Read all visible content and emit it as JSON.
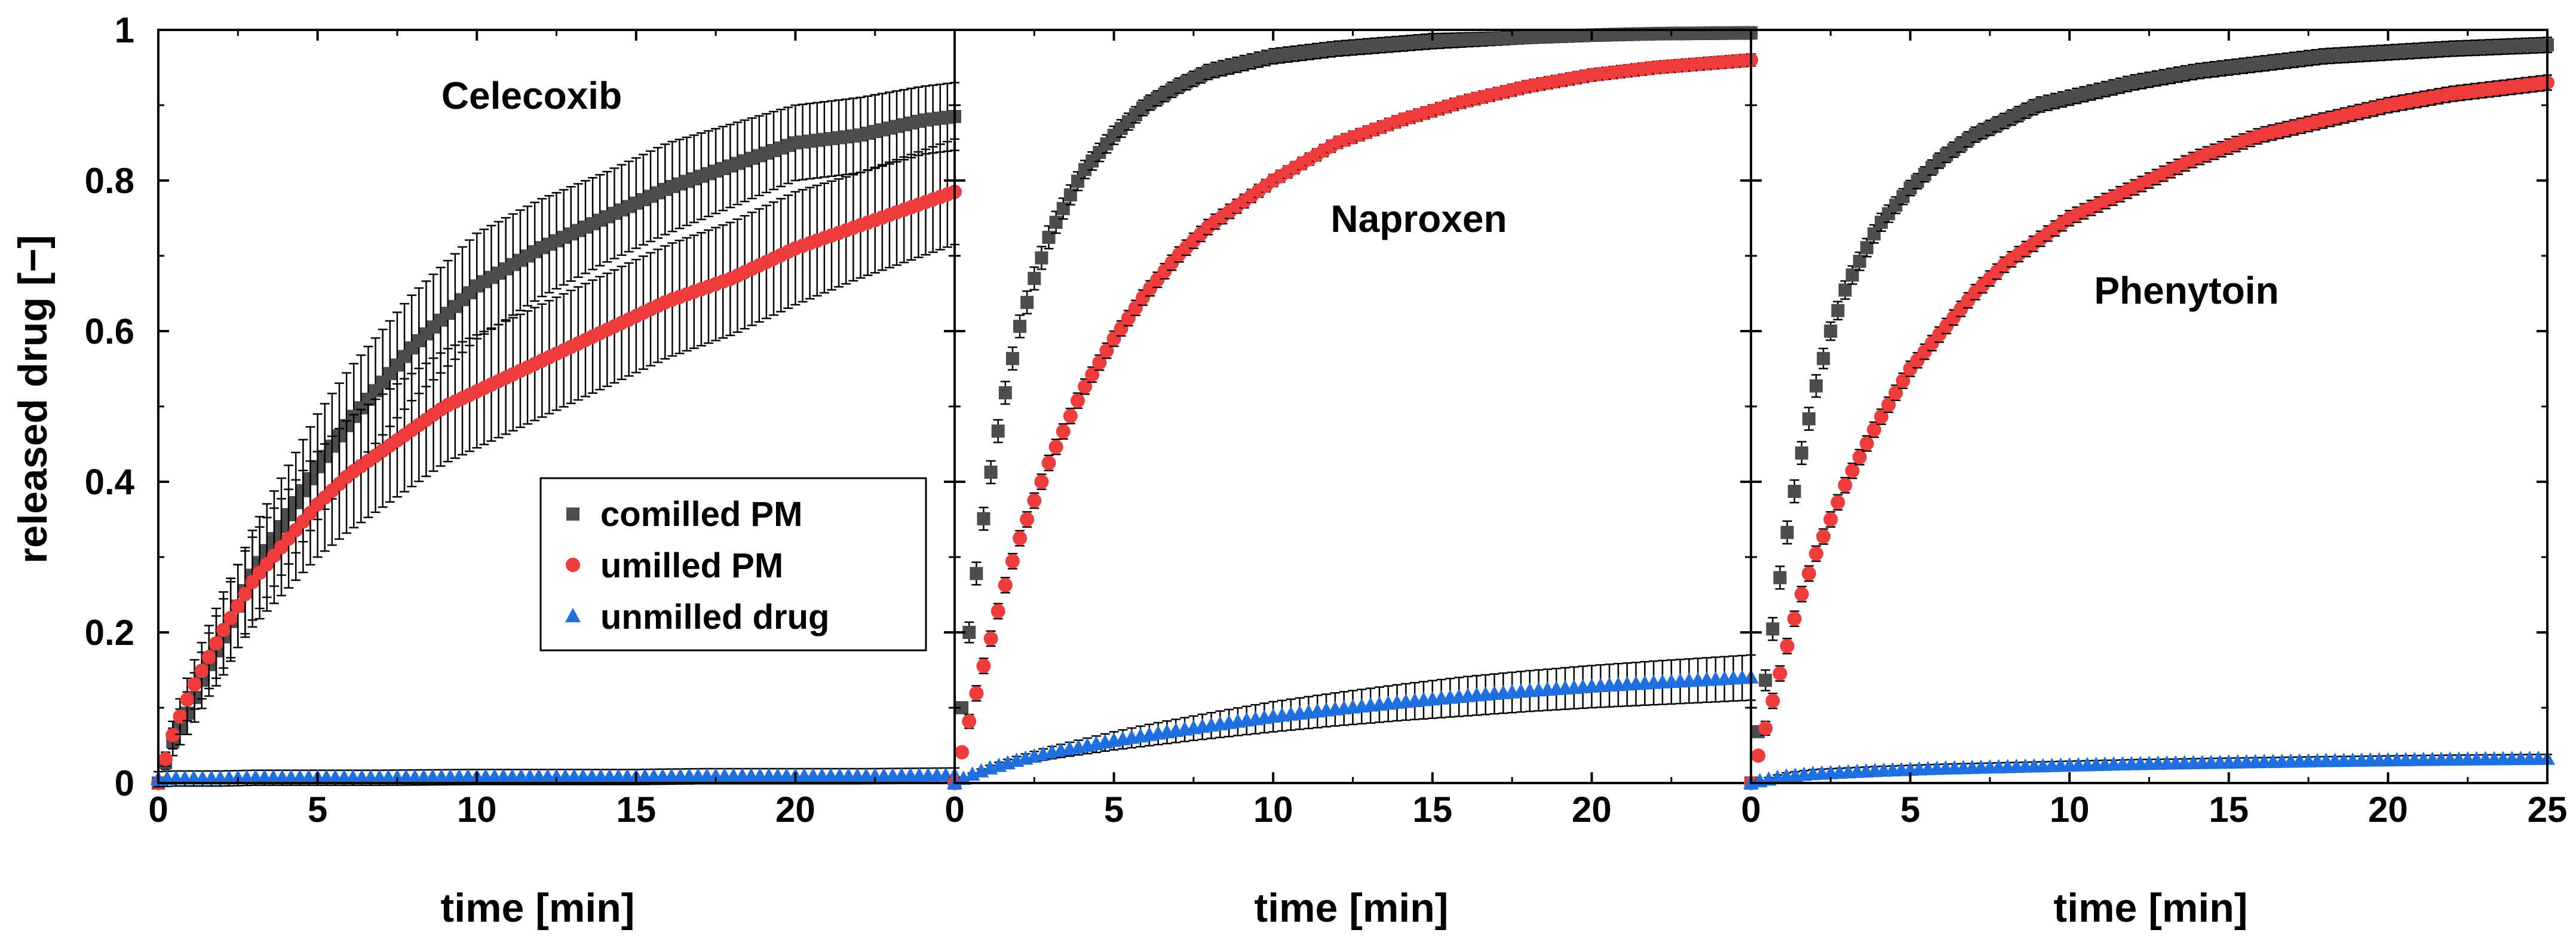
{
  "chart_data": {
    "type": "scatter",
    "ylabel": "released drug [−]",
    "ylim": [
      0,
      1
    ],
    "yticks": [
      0,
      0.2,
      0.4,
      0.6,
      0.8,
      1
    ],
    "ytick_labels": [
      "0",
      "0.2",
      "0.4",
      "0.6",
      "0.8",
      "1"
    ],
    "legend": {
      "placement": "center-right of first panel",
      "entries": [
        {
          "label": "comilled PM",
          "marker": "square",
          "color": "#4d4d4d"
        },
        {
          "label": "umilled PM",
          "marker": "circle",
          "color": "#ee3b3b"
        },
        {
          "label": "unmilled drug",
          "marker": "triangle",
          "color": "#1f6fe0"
        }
      ]
    },
    "panels": [
      {
        "title": "Celecoxib",
        "xlabel": "time [min]",
        "xlim": [
          0,
          25
        ],
        "xticks": [
          0,
          5,
          10,
          15,
          20
        ],
        "xtick_labels": [
          "0",
          "5",
          "10",
          "15",
          "20"
        ],
        "series": [
          {
            "name": "comilled PM",
            "color": "#4d4d4d",
            "t": [
              0,
              0.5,
              1,
              1.5,
              2,
              3,
              4,
              5,
              6,
              7,
              8,
              9,
              10,
              12,
              14,
              16,
              18,
              20,
              22,
              24,
              25
            ],
            "y": [
              0,
              0.06,
              0.1,
              0.15,
              0.19,
              0.28,
              0.35,
              0.42,
              0.48,
              0.53,
              0.58,
              0.62,
              0.66,
              0.71,
              0.75,
              0.79,
              0.82,
              0.85,
              0.86,
              0.88,
              0.885
            ],
            "err": [
              0,
              0.02,
              0.03,
              0.04,
              0.05,
              0.06,
              0.065,
              0.07,
              0.07,
              0.07,
              0.07,
              0.07,
              0.07,
              0.065,
              0.06,
              0.06,
              0.055,
              0.05,
              0.05,
              0.045,
              0.045
            ]
          },
          {
            "name": "umilled PM",
            "color": "#ee3b3b",
            "t": [
              0,
              0.5,
              1,
              1.5,
              2,
              3,
              4,
              5,
              6,
              7,
              8,
              9,
              10,
              12,
              14,
              16,
              18,
              20,
              22,
              24,
              25
            ],
            "y": [
              0,
              0.07,
              0.12,
              0.16,
              0.2,
              0.27,
              0.32,
              0.37,
              0.41,
              0.44,
              0.47,
              0.5,
              0.52,
              0.56,
              0.6,
              0.64,
              0.67,
              0.71,
              0.74,
              0.77,
              0.785
            ],
            "err": [
              0,
              0.02,
              0.03,
              0.04,
              0.05,
              0.06,
              0.065,
              0.07,
              0.075,
              0.075,
              0.075,
              0.075,
              0.075,
              0.075,
              0.075,
              0.075,
              0.075,
              0.075,
              0.07,
              0.07,
              0.07
            ]
          },
          {
            "name": "unmilled drug",
            "color": "#1f6fe0",
            "t": [
              0,
              0.5,
              1,
              2,
              3,
              5,
              7,
              10,
              12,
              15,
              17,
              20,
              22,
              25
            ],
            "y": [
              0.005,
              0.006,
              0.006,
              0.006,
              0.007,
              0.007,
              0.007,
              0.008,
              0.008,
              0.008,
              0.009,
              0.009,
              0.009,
              0.01
            ],
            "err": [
              0.01,
              0.01,
              0.01,
              0.01,
              0.01,
              0.01,
              0.01,
              0.01,
              0.01,
              0.01,
              0.01,
              0.01,
              0.01,
              0.01
            ]
          }
        ]
      },
      {
        "title": "Naproxen",
        "xlabel": "time [min]",
        "xlim": [
          0,
          25
        ],
        "xticks": [
          0,
          5,
          10,
          15,
          20
        ],
        "xtick_labels": [
          "0",
          "5",
          "10",
          "15",
          "20"
        ],
        "series": [
          {
            "name": "comilled PM",
            "color": "#4d4d4d",
            "t": [
              0,
              0.5,
              1,
              1.5,
              2,
              2.5,
              3,
              4,
              5,
              6,
              7,
              8,
              10,
              12,
              15,
              18,
              20,
              22,
              25
            ],
            "y": [
              0,
              0.22,
              0.38,
              0.5,
              0.6,
              0.67,
              0.73,
              0.81,
              0.86,
              0.9,
              0.925,
              0.945,
              0.965,
              0.975,
              0.985,
              0.99,
              0.993,
              0.995,
              0.996
            ],
            "err": [
              0,
              0.015,
              0.015,
              0.015,
              0.015,
              0.015,
              0.015,
              0.012,
              0.012,
              0.01,
              0.01,
              0.01,
              0.01,
              0.01,
              0.01,
              0.008,
              0.008,
              0.008,
              0.008
            ]
          },
          {
            "name": "umilled PM",
            "color": "#ee3b3b",
            "t": [
              0,
              0.5,
              1,
              1.5,
              2,
              3,
              4,
              5,
              6,
              7,
              8,
              10,
              12,
              14,
              16,
              18,
              20,
              22,
              25
            ],
            "y": [
              0,
              0.09,
              0.17,
              0.25,
              0.32,
              0.43,
              0.52,
              0.59,
              0.65,
              0.7,
              0.74,
              0.8,
              0.85,
              0.88,
              0.905,
              0.925,
              0.94,
              0.95,
              0.96
            ],
            "err": [
              0,
              0.01,
              0.01,
              0.01,
              0.01,
              0.01,
              0.01,
              0.01,
              0.01,
              0.01,
              0.01,
              0.008,
              0.008,
              0.008,
              0.008,
              0.008,
              0.008,
              0.008,
              0.008
            ]
          },
          {
            "name": "unmilled drug",
            "color": "#1f6fe0",
            "t": [
              0,
              0.5,
              1,
              2,
              3,
              4,
              5,
              6,
              8,
              10,
              12,
              14,
              16,
              18,
              20,
              22,
              25
            ],
            "y": [
              0,
              0.01,
              0.018,
              0.03,
              0.04,
              0.048,
              0.056,
              0.063,
              0.076,
              0.088,
              0.098,
              0.107,
              0.115,
              0.122,
              0.128,
              0.133,
              0.14
            ],
            "err": [
              0,
              0.002,
              0.004,
              0.006,
              0.008,
              0.01,
              0.012,
              0.014,
              0.017,
              0.02,
              0.022,
              0.024,
              0.026,
              0.027,
              0.028,
              0.029,
              0.03
            ]
          }
        ]
      },
      {
        "title": "Phenytoin",
        "xlabel": "time [min]",
        "xlim": [
          0,
          25
        ],
        "xticks": [
          0,
          5,
          10,
          15,
          20,
          25
        ],
        "xtick_labels": [
          "0",
          "5",
          "10",
          "15",
          "20",
          "25"
        ],
        "series": [
          {
            "name": "comilled PM",
            "color": "#4d4d4d",
            "t": [
              0,
              0.5,
              1,
              1.5,
              2,
              2.5,
              3,
              4,
              5,
              6,
              7,
              8,
              9,
              10,
              12,
              14,
              16,
              18,
              20,
              22,
              25
            ],
            "y": [
              0,
              0.15,
              0.3,
              0.42,
              0.52,
              0.6,
              0.66,
              0.74,
              0.79,
              0.83,
              0.86,
              0.88,
              0.9,
              0.91,
              0.93,
              0.945,
              0.955,
              0.965,
              0.97,
              0.975,
              0.98
            ],
            "err": [
              0,
              0.015,
              0.015,
              0.015,
              0.015,
              0.012,
              0.012,
              0.012,
              0.01,
              0.01,
              0.01,
              0.01,
              0.01,
              0.01,
              0.01,
              0.01,
              0.01,
              0.01,
              0.01,
              0.01,
              0.01
            ]
          },
          {
            "name": "umilled PM",
            "color": "#ee3b3b",
            "t": [
              0,
              0.5,
              1,
              1.5,
              2,
              3,
              4,
              5,
              6,
              7,
              8,
              9,
              10,
              12,
              14,
              16,
              18,
              20,
              22,
              24,
              25
            ],
            "y": [
              0,
              0.08,
              0.16,
              0.24,
              0.3,
              0.4,
              0.48,
              0.55,
              0.6,
              0.65,
              0.69,
              0.72,
              0.75,
              0.79,
              0.83,
              0.86,
              0.88,
              0.9,
              0.915,
              0.925,
              0.93
            ],
            "err": [
              0,
              0.01,
              0.01,
              0.01,
              0.01,
              0.01,
              0.01,
              0.01,
              0.01,
              0.01,
              0.01,
              0.01,
              0.01,
              0.01,
              0.01,
              0.01,
              0.01,
              0.01,
              0.01,
              0.01,
              0.01
            ]
          },
          {
            "name": "unmilled drug",
            "color": "#1f6fe0",
            "t": [
              0,
              1,
              2,
              4,
              6,
              8,
              10,
              12,
              15,
              18,
              20,
              22,
              25
            ],
            "y": [
              0,
              0.008,
              0.012,
              0.016,
              0.019,
              0.021,
              0.023,
              0.025,
              0.027,
              0.029,
              0.03,
              0.031,
              0.032
            ],
            "err": [
              0,
              0.005,
              0.006,
              0.006,
              0.006,
              0.006,
              0.006,
              0.006,
              0.006,
              0.006,
              0.006,
              0.006,
              0.006
            ]
          }
        ]
      }
    ]
  }
}
